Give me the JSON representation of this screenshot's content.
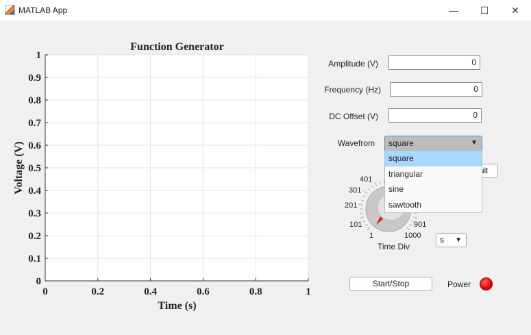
{
  "window": {
    "title": "MATLAB App",
    "minimize": "—",
    "maximize": "☐",
    "close": "✕"
  },
  "plot": {
    "title": "Function Generator",
    "xlabel": "Time  (s)",
    "ylabel": "Voltage (V)",
    "xticks": [
      "0",
      "0.2",
      "0.4",
      "0.6",
      "0.8",
      "1"
    ],
    "yticks": [
      "0",
      "0.1",
      "0.2",
      "0.3",
      "0.4",
      "0.5",
      "0.6",
      "0.7",
      "0.8",
      "0.9",
      "1"
    ],
    "xlim": [
      0,
      1
    ],
    "ylim": [
      0,
      1
    ],
    "grid": true
  },
  "controls": {
    "amplitude": {
      "label": "Amplitude (V)",
      "value": "0"
    },
    "frequency": {
      "label": "Frequency (Hz)",
      "value": "0"
    },
    "dc_offset": {
      "label": "DC Offset (V)",
      "value": "0"
    },
    "waveform": {
      "label": "Wavefrom",
      "value": "square",
      "options": [
        "square",
        "triangular",
        "sine",
        "sawtooth"
      ]
    },
    "default_button": "Default",
    "knob": {
      "label": "Time Div",
      "ticks": [
        "1",
        "101",
        "201",
        "301",
        "401",
        "901",
        "1000"
      ],
      "value": 1
    },
    "unit": {
      "value": "s"
    },
    "start_stop": "Start/Stop",
    "power": {
      "label": "Power",
      "color": "#e00000"
    }
  }
}
